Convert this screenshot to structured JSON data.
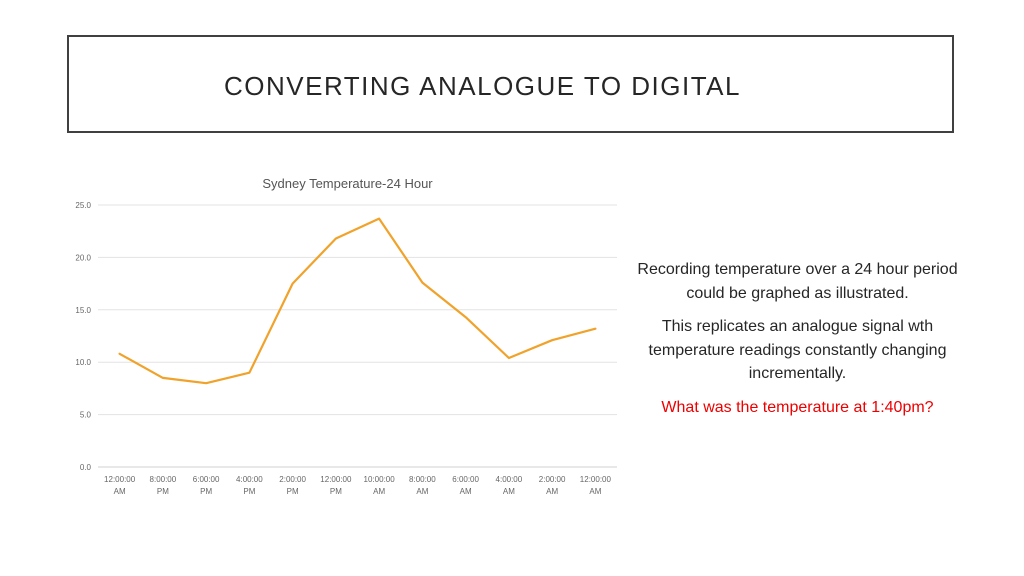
{
  "slide": {
    "title": "CONVERTING ANALOGUE TO DIGITAL",
    "paragraph1": "Recording temperature over a 24 hour period could be graphed as illustrated.",
    "paragraph2": "This replicates an analogue signal wth temperature readings constantly changing incrementally.",
    "question": "What was the temperature at 1:40pm?"
  },
  "colors": {
    "line": "#f0a22a",
    "grid": "#e3e3e3",
    "question": "#ee0000"
  },
  "chart_data": {
    "type": "line",
    "title": "Sydney Temperature-24 Hour",
    "xlabel": "",
    "ylabel": "",
    "ylim": [
      0,
      25
    ],
    "y_ticks": [
      "0.0",
      "5.0",
      "10.0",
      "15.0",
      "20.0",
      "25.0"
    ],
    "grid": true,
    "legend": "none",
    "categories": [
      [
        "12:00:00",
        "AM"
      ],
      [
        "8:00:00",
        "PM"
      ],
      [
        "6:00:00",
        "PM"
      ],
      [
        "4:00:00",
        "PM"
      ],
      [
        "2:00:00",
        "PM"
      ],
      [
        "12:00:00",
        "PM"
      ],
      [
        "10:00:00",
        "AM"
      ],
      [
        "8:00:00",
        "AM"
      ],
      [
        "6:00:00",
        "AM"
      ],
      [
        "4:00:00",
        "AM"
      ],
      [
        "2:00:00",
        "AM"
      ],
      [
        "12:00:00",
        "AM"
      ]
    ],
    "series": [
      {
        "values": [
          10.8,
          8.5,
          8.0,
          9.0,
          17.5,
          21.8,
          23.7,
          17.6,
          14.3,
          10.4,
          12.1,
          13.2
        ]
      }
    ]
  }
}
